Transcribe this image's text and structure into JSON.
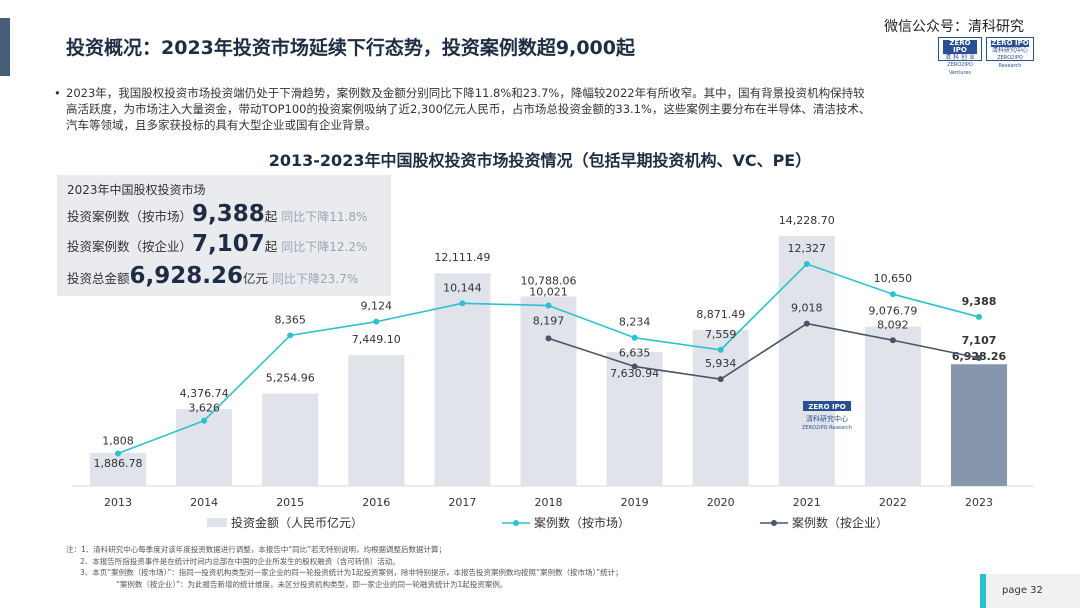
{
  "header": {
    "title": "投资概况：2023年投资市场延续下行态势，投资案例数超9,000起",
    "watermark": "微信公众号：清科研究",
    "logo_a_top": "ZERO IPO",
    "logo_a_mid": "清 科 创 业",
    "logo_a_bot": "ZERO2IPO Ventures",
    "logo_b_top": "ZERO IPO",
    "logo_b_mid": "清科研究中心",
    "logo_b_bot": "ZERO2IPO Research"
  },
  "bullet": {
    "dot": "•",
    "line1": "2023年，我国股权投资市场投资端仍处于下滑趋势，案例数及金额分别同比下降11.8%和23.7%，降幅较2022年有所收窄。其中，国有背景投资机构保持较",
    "line2": "高活跃度，为市场注入大量资金，带动TOP100的投资案例吸纳了近2,300亿元人民币，占市场总投资金额的33.1%，这些案例主要分布在半导体、清洁技术、",
    "line3": "汽车等领域，且多家获投标的具有大型企业或国有企业背景。"
  },
  "summary": {
    "heading": "2023年中国股权投资市场",
    "row1_label": "投资案例数（按市场）",
    "row1_value": "9,388",
    "row1_unit": "起",
    "row1_yoy": "同比下降11.8%",
    "row2_label": "投资案例数（按企业）",
    "row2_value": "7,107",
    "row2_unit": "起",
    "row2_yoy": "同比下降12.2%",
    "row3_label": "投资总金额",
    "row3_value": "6,928.26",
    "row3_unit": "亿元",
    "row3_yoy": "同比下降23.7%"
  },
  "chart_data": {
    "type": "bar",
    "title": "2013-2023年中国股权投资市场投资情况（包括早期投资机构、VC、PE）",
    "categories": [
      "2013",
      "2014",
      "2015",
      "2016",
      "2017",
      "2018",
      "2019",
      "2020",
      "2021",
      "2022",
      "2023"
    ],
    "series": [
      {
        "name": "投资金额（人民币亿元）",
        "kind": "bar",
        "values": [
          1886.78,
          4376.74,
          5254.96,
          7449.1,
          12111.49,
          10788.06,
          7630.94,
          8871.49,
          14228.7,
          9076.79,
          6928.26
        ],
        "labels": [
          "1,886.78",
          "4,376.74",
          "5,254.96",
          "7,449.10",
          "12,111.49",
          "10,788.06",
          "7,630.94",
          "8,871.49",
          "14,228.70",
          "9,076.79",
          "6,928.26"
        ],
        "color": "#e0e3ea",
        "highlight_color": "#8596ad"
      },
      {
        "name": "案例数（按市场）",
        "kind": "line",
        "values": [
          1808,
          3626,
          8365,
          9124,
          10144,
          10021,
          8234,
          7559,
          12327,
          10650,
          9388
        ],
        "labels": [
          "1,808",
          "3,626",
          "8,365",
          "9,124",
          "10,144",
          "10,021",
          "8,234",
          "7,559",
          "12,327",
          "10,650",
          "9,388"
        ],
        "color": "#2bc2cf"
      },
      {
        "name": "案例数（按企业）",
        "kind": "line",
        "values": [
          null,
          null,
          null,
          null,
          null,
          8197,
          6635,
          5934,
          9018,
          8092,
          7107
        ],
        "labels": [
          null,
          null,
          null,
          null,
          null,
          "8,197",
          "6,635",
          "5,934",
          "9,018",
          "8,092",
          "7,107"
        ],
        "color": "#4a5468"
      }
    ],
    "watermark": {
      "top": "ZERO IPO",
      "mid": "清科研究中心",
      "bot": "ZERO2IPO Research"
    }
  },
  "notes": {
    "n1": "注：1、清科研究中心每季度对该年度投资数据进行调整，本报告中“同比”若无特别说明，均根据调整后数据计算；",
    "n2": "2、本报告所指投资事件是在统计时间内总部在中国的企业所发生的股权融资（含可转债）活动。",
    "n3": "3、本页“案例数（按市场）”：指同一投资机构类型对一家企业的同一轮投资统计为1起投资案例，除非特别提示，本报告投资案例数均按照“案例数（按市场）”统计；",
    "n4": "“案例数（按企业）”：为此报告新增的统计维度，未区分投资机构类型，即一家企业的同一轮融资统计为1起投资案例。"
  },
  "footer": {
    "page": "page  32"
  }
}
